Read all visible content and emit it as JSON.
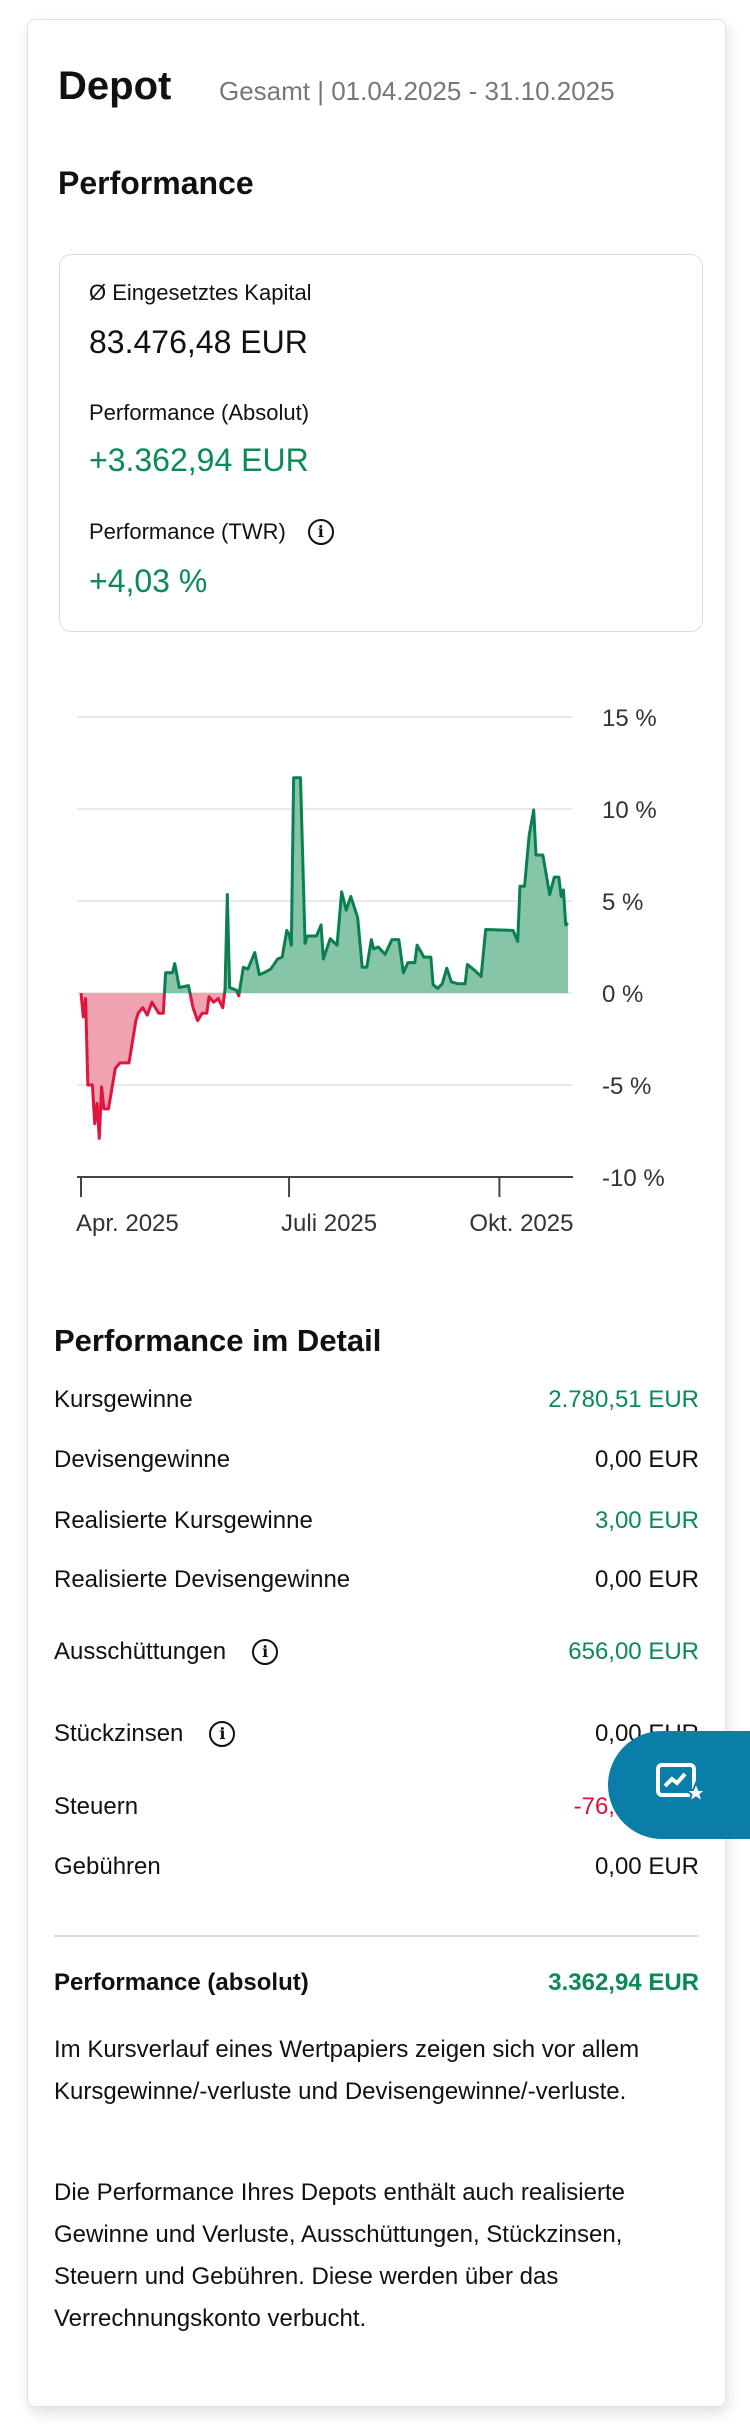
{
  "header": {
    "title": "Depot",
    "subtitle": "Gesamt | 01.04.2025 - 31.10.2025"
  },
  "performance": {
    "heading": "Performance",
    "capital_label": "Ø Eingesetztes Kapital",
    "capital_value": "83.476,48 EUR",
    "abs_label": "Performance (Absolut)",
    "abs_value": "+3.362,94 EUR",
    "twr_label": "Performance (TWR)",
    "twr_value": "+4,03 %",
    "info_icon": "info-icon"
  },
  "colors": {
    "positive": "#0a8a55",
    "negative": "#d4163c",
    "fab": "#0a7ea8",
    "positive_fill": "#86c5a8",
    "negative_fill": "#f0a2b0"
  },
  "chart_data": {
    "type": "area",
    "x_axis_type": "date",
    "xlim": [
      "2025-04-01",
      "2025-10-31"
    ],
    "ylim": [
      -10,
      15
    ],
    "y_ticks": [
      15,
      10,
      5,
      0,
      -5,
      -10
    ],
    "y_tick_labels": [
      "15 %",
      "10 %",
      "5 %",
      "0 %",
      "-5 %",
      "-10 %"
    ],
    "x_ticks": [
      "2025-04-01",
      "2025-07-01",
      "2025-10-01"
    ],
    "x_tick_labels": [
      "Apr. 2025",
      "Juli 2025",
      "Okt. 2025"
    ],
    "grid": true,
    "y_axis_position": "right",
    "series": [
      {
        "x": [
          "2025-04-01",
          "2025-04-02",
          "2025-04-03",
          "2025-04-04",
          "2025-04-06",
          "2025-04-07",
          "2025-04-08",
          "2025-04-09",
          "2025-04-10",
          "2025-04-11",
          "2025-04-13",
          "2025-04-16",
          "2025-04-18",
          "2025-04-22",
          "2025-04-25",
          "2025-04-26",
          "2025-04-28",
          "2025-04-30",
          "2025-05-02",
          "2025-05-05",
          "2025-05-07",
          "2025-05-08",
          "2025-05-11",
          "2025-05-12",
          "2025-05-14",
          "2025-05-18",
          "2025-05-20",
          "2025-05-22",
          "2025-05-24",
          "2025-05-26",
          "2025-05-27",
          "2025-05-29",
          "2025-05-31",
          "2025-06-02",
          "2025-06-03",
          "2025-06-04",
          "2025-06-05",
          "2025-06-08",
          "2025-06-09",
          "2025-06-11",
          "2025-06-13",
          "2025-06-16",
          "2025-06-18",
          "2025-06-20",
          "2025-06-23",
          "2025-06-26",
          "2025-06-28",
          "2025-06-30",
          "2025-07-01",
          "2025-07-02",
          "2025-07-03",
          "2025-07-06",
          "2025-07-08",
          "2025-07-09",
          "2025-07-13",
          "2025-07-15",
          "2025-07-16",
          "2025-07-19",
          "2025-07-22",
          "2025-07-24",
          "2025-07-26",
          "2025-07-28",
          "2025-07-31",
          "2025-08-02",
          "2025-08-04",
          "2025-08-06",
          "2025-08-07",
          "2025-08-09",
          "2025-08-12",
          "2025-08-15",
          "2025-08-18",
          "2025-08-20",
          "2025-08-22",
          "2025-08-25",
          "2025-08-26",
          "2025-08-29",
          "2025-09-01",
          "2025-09-02",
          "2025-09-04",
          "2025-09-06",
          "2025-09-08",
          "2025-09-10",
          "2025-09-13",
          "2025-09-16",
          "2025-09-17",
          "2025-09-20",
          "2025-09-23",
          "2025-09-25",
          "2025-10-07",
          "2025-10-09",
          "2025-10-10",
          "2025-10-12",
          "2025-10-14",
          "2025-10-16",
          "2025-10-17",
          "2025-10-20",
          "2025-10-23",
          "2025-10-25",
          "2025-10-27",
          "2025-10-28",
          "2025-10-29",
          "2025-10-30",
          "2025-10-31"
        ],
        "y": [
          0,
          -1.3,
          -0.3,
          -5.0,
          -5.0,
          -7.1,
          -6.0,
          -7.9,
          -5.1,
          -6.3,
          -6.3,
          -4.1,
          -3.8,
          -3.8,
          -1.5,
          -1.1,
          -0.8,
          -1.2,
          -0.5,
          -1.1,
          -1.1,
          1.1,
          1.1,
          1.6,
          0.3,
          0.4,
          -0.8,
          -1.5,
          -1.1,
          -1.1,
          -0.2,
          -0.5,
          -0.3,
          -0.8,
          0.2,
          5.35,
          0.3,
          0.15,
          -0.15,
          1.4,
          1.3,
          2.2,
          1.0,
          1.1,
          1.3,
          1.85,
          1.95,
          3.4,
          3.2,
          2.6,
          11.7,
          11.7,
          2.7,
          3.1,
          3.1,
          3.7,
          1.85,
          2.95,
          2.6,
          5.5,
          4.5,
          5.25,
          4.1,
          1.4,
          1.4,
          2.9,
          2.4,
          2.5,
          2.1,
          2.9,
          2.9,
          1.1,
          1.65,
          1.65,
          2.6,
          1.95,
          1.95,
          0.45,
          0.25,
          0.5,
          1.35,
          0.6,
          0.5,
          0.5,
          1.55,
          1.25,
          0.9,
          3.45,
          3.4,
          2.8,
          5.8,
          5.8,
          8.55,
          9.95,
          7.5,
          7.5,
          5.35,
          6.3,
          6.3,
          5.25,
          5.6,
          3.7,
          3.8
        ]
      }
    ]
  },
  "detail": {
    "heading": "Performance im Detail",
    "rows": [
      {
        "label": "Kursgewinne",
        "value": "2.780,51 EUR",
        "tone": "positive"
      },
      {
        "label": "Devisengewinne",
        "value": "0,00 EUR",
        "tone": "neutral"
      },
      {
        "label": "Realisierte Kursgewinne",
        "value": "3,00 EUR",
        "tone": "positive"
      },
      {
        "label": "Realisierte Devisengewinne",
        "value": "0,00 EUR",
        "tone": "neutral"
      },
      {
        "label": "Ausschüttungen",
        "value": "656,00 EUR",
        "tone": "positive",
        "info": true
      },
      {
        "label": "Stückzinsen",
        "value": "0,00 EUR",
        "tone": "neutral",
        "info": true
      },
      {
        "label": "Steuern",
        "value": "-76,57 EUR",
        "tone": "negative"
      },
      {
        "label": "Gebühren",
        "value": "0,00 EUR",
        "tone": "neutral"
      }
    ],
    "total_label": "Performance (absolut)",
    "total_value": "3.362,94 EUR",
    "para1": "Im Kursverlauf eines Wertpapiers zeigen sich vor allem Kursgewinne/-verluste und Devisengewinne/-verluste.",
    "para2": "Die Performance Ihres Depots enthält auch realisierte Gewinne und Verluste, Ausschüttungen, Stückzinsen, Steuern und Gebühren. Diese werden über das Verrechnungskonto verbucht."
  },
  "fab": {
    "icon": "chart-star-icon"
  }
}
